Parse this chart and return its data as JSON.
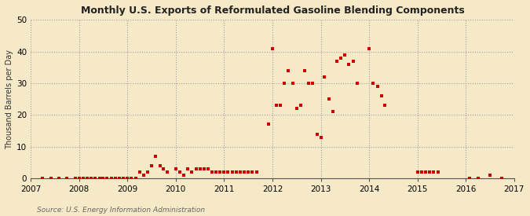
{
  "title": "Monthly U.S. Exports of Reformulated Gasoline Blending Components",
  "ylabel": "Thousand Barrels per Day",
  "source": "Source: U.S. Energy Information Administration",
  "bg_color": "#f5e9c8",
  "plot_bg_color": "#f5e9c8",
  "dot_color": "#cc0000",
  "ylim": [
    0,
    50
  ],
  "yticks": [
    0,
    10,
    20,
    30,
    40,
    50
  ],
  "xlim_min": 2007.0,
  "xlim_max": 2017.0,
  "xticks": [
    2007,
    2008,
    2009,
    2010,
    2011,
    2012,
    2013,
    2014,
    2015,
    2016,
    2017
  ],
  "data_x": [
    2007.25,
    2007.42,
    2007.58,
    2007.75,
    2007.92,
    2008.0,
    2008.08,
    2008.17,
    2008.25,
    2008.33,
    2008.42,
    2008.5,
    2008.58,
    2008.67,
    2008.75,
    2008.83,
    2008.92,
    2009.0,
    2009.08,
    2009.17,
    2009.25,
    2009.33,
    2009.42,
    2009.5,
    2009.58,
    2009.67,
    2009.75,
    2009.83,
    2010.0,
    2010.08,
    2010.17,
    2010.25,
    2010.33,
    2010.42,
    2010.5,
    2010.58,
    2010.67,
    2010.75,
    2010.83,
    2010.92,
    2011.0,
    2011.08,
    2011.17,
    2011.25,
    2011.33,
    2011.42,
    2011.5,
    2011.58,
    2011.67,
    2011.92,
    2012.0,
    2012.08,
    2012.17,
    2012.25,
    2012.33,
    2012.42,
    2012.5,
    2012.58,
    2012.67,
    2012.75,
    2012.83,
    2012.92,
    2013.0,
    2013.08,
    2013.17,
    2013.25,
    2013.33,
    2013.42,
    2013.5,
    2013.58,
    2013.67,
    2013.75,
    2014.0,
    2014.08,
    2014.17,
    2014.25,
    2014.33,
    2015.0,
    2015.08,
    2015.17,
    2015.25,
    2015.33,
    2015.42,
    2016.08,
    2016.25,
    2016.5,
    2016.75
  ],
  "data_y": [
    0,
    0,
    0,
    0,
    0,
    0,
    0,
    0,
    0,
    0,
    0,
    0,
    0,
    0,
    0,
    0,
    0,
    0,
    0,
    0,
    2,
    1,
    2,
    4,
    7,
    4,
    3,
    2,
    3,
    2,
    1,
    3,
    2,
    3,
    3,
    3,
    3,
    2,
    2,
    2,
    2,
    2,
    2,
    2,
    2,
    2,
    2,
    2,
    2,
    17,
    41,
    23,
    23,
    30,
    34,
    30,
    22,
    23,
    34,
    30,
    30,
    14,
    13,
    32,
    25,
    21,
    37,
    38,
    39,
    36,
    37,
    30,
    41,
    30,
    29,
    26,
    23,
    2,
    2,
    2,
    2,
    2,
    2,
    0,
    0,
    1,
    0
  ]
}
